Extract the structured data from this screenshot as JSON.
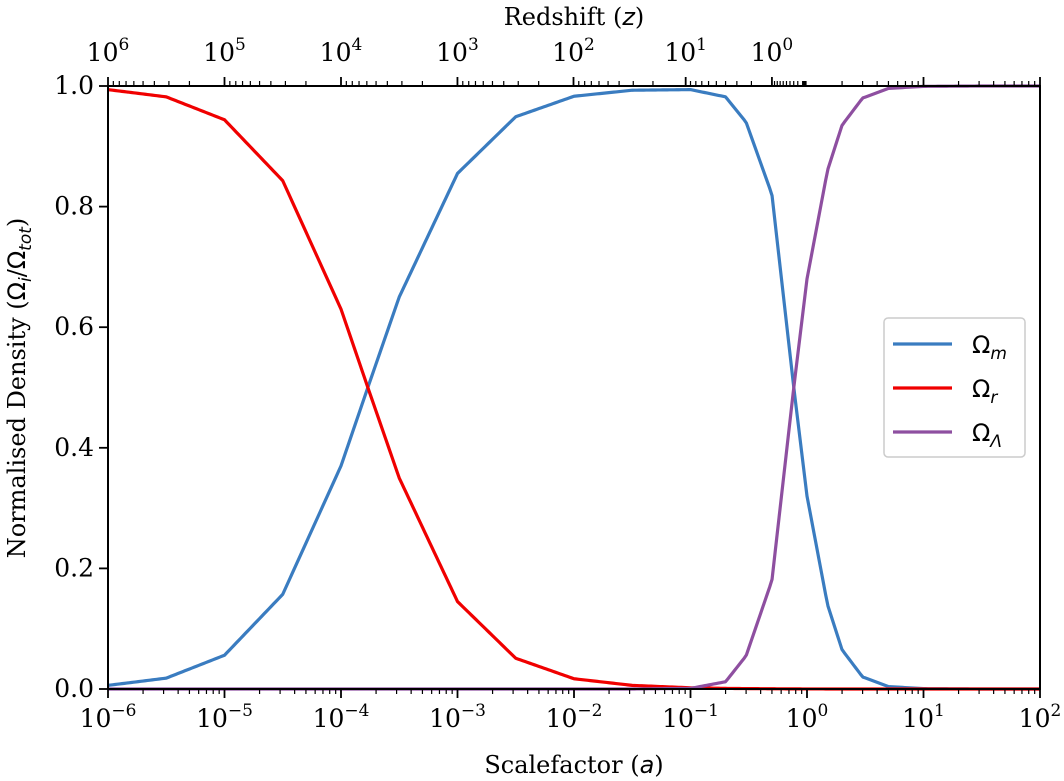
{
  "chart_data": {
    "type": "line",
    "title": "",
    "xlabel": {
      "text": "Scalefactor (",
      "symbol": "a",
      "close": ")"
    },
    "ylabel": {
      "text": "Normalised Density (",
      "num": "Ω",
      "num_sub": "i",
      "slash": "/",
      "den": "Ω",
      "den_sub": "tot",
      "close": ")"
    },
    "top_xlabel": {
      "text": "Redshift (",
      "symbol": "z",
      "close": ")"
    },
    "x_scale": "log",
    "xlim": [
      1e-06,
      100
    ],
    "ylim": [
      0.0,
      1.0
    ],
    "grid": false,
    "legend_position": "center-right",
    "x_ticks": [
      {
        "value": 1e-06,
        "base": "10",
        "exp": "−6"
      },
      {
        "value": 1e-05,
        "base": "10",
        "exp": "−5"
      },
      {
        "value": 0.0001,
        "base": "10",
        "exp": "−4"
      },
      {
        "value": 0.001,
        "base": "10",
        "exp": "−3"
      },
      {
        "value": 0.01,
        "base": "10",
        "exp": "−2"
      },
      {
        "value": 0.1,
        "base": "10",
        "exp": "−1"
      },
      {
        "value": 1,
        "base": "10",
        "exp": "0"
      },
      {
        "value": 10,
        "base": "10",
        "exp": "1"
      },
      {
        "value": 100,
        "base": "10",
        "exp": "2"
      }
    ],
    "y_ticks": [
      "0.0",
      "0.2",
      "0.4",
      "0.6",
      "0.8",
      "1.0"
    ],
    "top_ticks": [
      {
        "z": 1000000.0,
        "base": "10",
        "exp": "6"
      },
      {
        "z": 100000.0,
        "base": "10",
        "exp": "5"
      },
      {
        "z": 10000.0,
        "base": "10",
        "exp": "4"
      },
      {
        "z": 1000.0,
        "base": "10",
        "exp": "3"
      },
      {
        "z": 100.0,
        "base": "10",
        "exp": "2"
      },
      {
        "z": 10,
        "base": "10",
        "exp": "1"
      },
      {
        "z": 1,
        "base": "10",
        "exp": "0"
      }
    ],
    "x": [
      1e-06,
      3.16e-06,
      1e-05,
      3.16e-05,
      0.0001,
      0.00017,
      0.000316,
      0.001,
      0.00316,
      0.01,
      0.0316,
      0.1,
      0.2,
      0.3,
      0.5,
      0.77,
      1,
      1.5,
      2,
      3,
      5,
      10,
      31.6,
      100
    ],
    "series": [
      {
        "name": "Ω",
        "sub": "m",
        "color": "#3a7cc0",
        "values": [
          0.006,
          0.018,
          0.056,
          0.157,
          0.37,
          0.5,
          0.65,
          0.855,
          0.949,
          0.983,
          0.993,
          0.994,
          0.982,
          0.94,
          0.82,
          0.5,
          0.32,
          0.14,
          0.065,
          0.02,
          0.004,
          0.0006,
          2e-05,
          0.0
        ]
      },
      {
        "name": "Ω",
        "sub": "r",
        "color": "#f00000",
        "values": [
          0.994,
          0.982,
          0.944,
          0.843,
          0.63,
          0.5,
          0.35,
          0.145,
          0.051,
          0.017,
          0.006,
          0.002,
          0.001,
          0.0007,
          0.0004,
          0.0002,
          0.0001,
          5e-05,
          3e-05,
          1e-05,
          0.0,
          0.0,
          0.0,
          0.0
        ]
      },
      {
        "name": "Ω",
        "sub": "Λ",
        "color": "#8e4fa0",
        "values": [
          0.0,
          0.0,
          0.0,
          0.0,
          0.0,
          0.0,
          0.0,
          0.0,
          0.0,
          0.0,
          0.0,
          0.001,
          0.012,
          0.055,
          0.18,
          0.5,
          0.68,
          0.86,
          0.935,
          0.98,
          0.996,
          0.9994,
          1.0,
          1.0
        ]
      }
    ]
  }
}
